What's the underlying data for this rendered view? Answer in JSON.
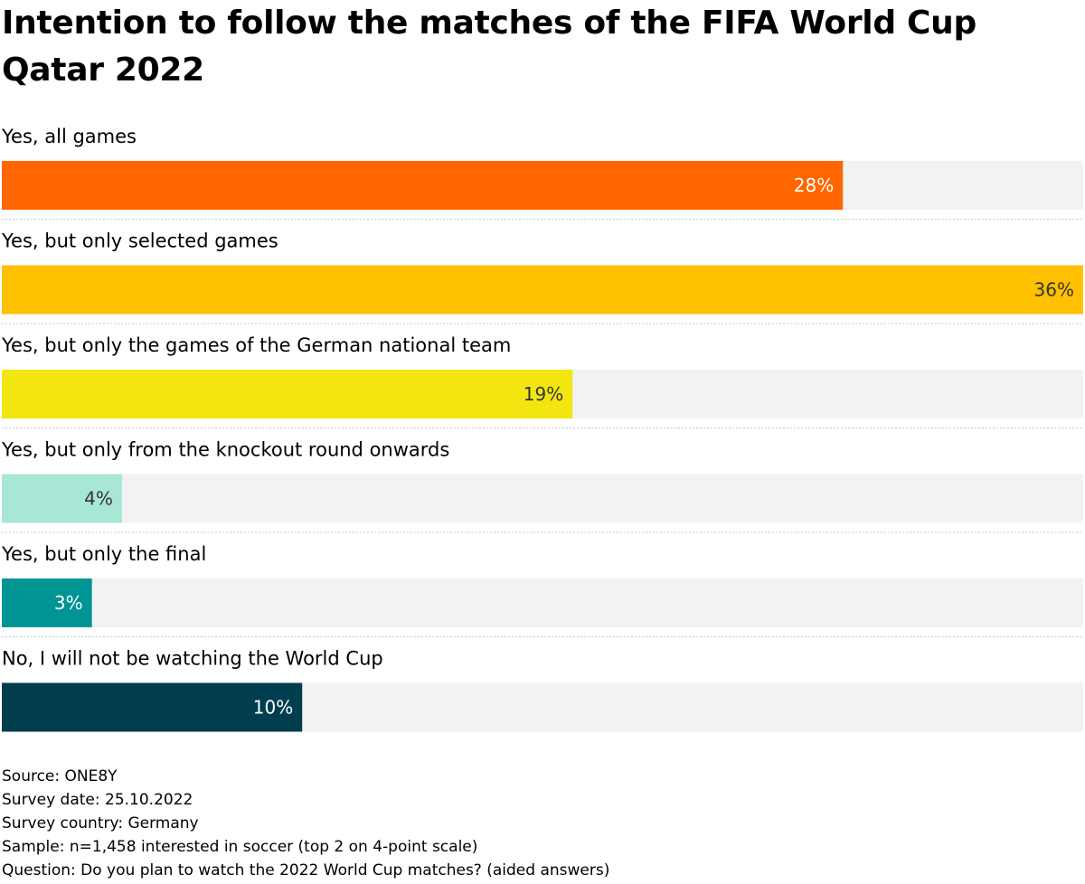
{
  "chart_data": {
    "type": "bar",
    "orientation": "horizontal",
    "title": "Intention to follow the matches of the FIFA World Cup Qatar 2022",
    "categories": [
      "Yes, all games",
      "Yes, but only selected games",
      "Yes, but only the games of the German national team",
      "Yes, but only from the knockout round onwards",
      "Yes, but only the final",
      "No, I will not be watching the World Cup"
    ],
    "values": [
      28,
      36,
      19,
      4,
      3,
      10
    ],
    "value_labels": [
      "28%",
      "36%",
      "19%",
      "4%",
      "3%",
      "10%"
    ],
    "unit": "%",
    "xlim": [
      0,
      36
    ],
    "colors": [
      "#ff6600",
      "#ffc000",
      "#f2e510",
      "#a8e6d6",
      "#009494",
      "#003e4f"
    ],
    "label_colors": [
      "#ffffff",
      "#333333",
      "#333333",
      "#333333",
      "#ffffff",
      "#ffffff"
    ],
    "track_color": "#f2f2f2",
    "grid": false,
    "legend": "none"
  },
  "footer": {
    "source": "Source: ONE8Y",
    "survey_date": "Survey date: 25.10.2022",
    "survey_country": "Survey country: Germany",
    "sample": "Sample: n=1,458 interested in soccer (top 2 on 4-point scale)",
    "question": "Question: Do you plan to watch the 2022 World Cup matches? (aided answers)"
  }
}
